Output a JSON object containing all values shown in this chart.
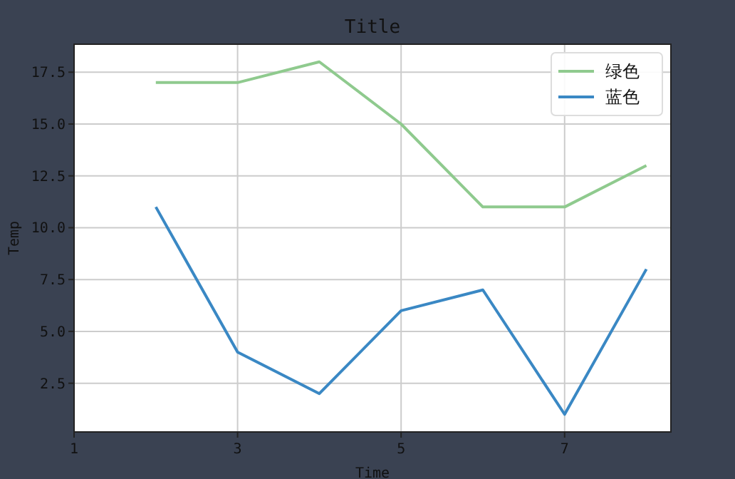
{
  "chart_data": {
    "type": "line",
    "title": "Title",
    "xlabel": "Time",
    "ylabel": "Temp",
    "x": [
      2,
      3,
      4,
      5,
      6,
      7,
      8
    ],
    "series": [
      {
        "name": "绿色",
        "color": "#8fca8e",
        "values": [
          17,
          17,
          18,
          15,
          11,
          11,
          13
        ]
      },
      {
        "name": "蓝色",
        "color": "#3a88c4",
        "values": [
          11,
          4,
          2,
          6,
          7,
          1,
          8
        ]
      }
    ],
    "xlim": [
      1,
      8.3
    ],
    "xticks": [
      1,
      3,
      5,
      7
    ],
    "ylim": [
      0.15,
      18.85
    ],
    "yticks": [
      2.5,
      {
        "value": 5,
        "label": "5.0"
      },
      7.5,
      {
        "value": 10,
        "label": "10.0"
      },
      12.5,
      {
        "value": 15,
        "label": "15.0"
      },
      17.5
    ],
    "grid": true,
    "legend": "top right",
    "line_style": "solid",
    "marker": "none"
  }
}
